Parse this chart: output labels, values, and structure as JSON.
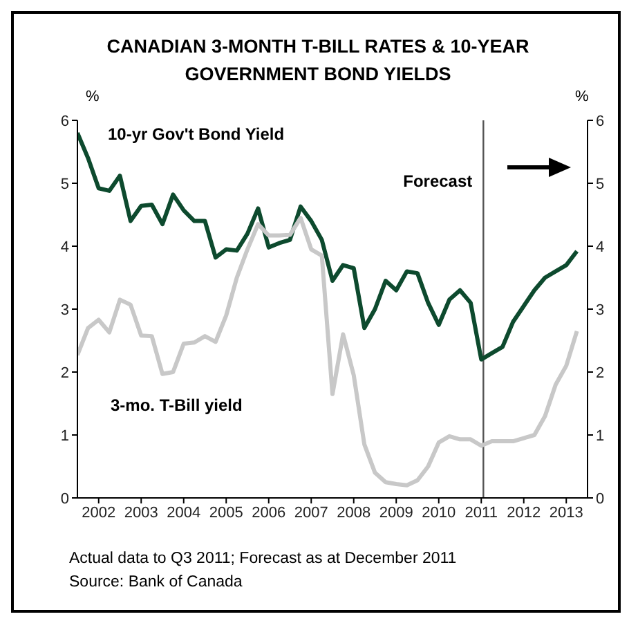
{
  "chart_data": {
    "type": "line",
    "title": "CANADIAN 3-MONTH T-BILL RATES & 10-YEAR GOVERNMENT BOND YIELDS",
    "ylabel": "%",
    "y2label": "%",
    "x": [
      2002,
      2002.25,
      2002.5,
      2002.75,
      2003,
      2003.25,
      2003.5,
      2003.75,
      2004,
      2004.25,
      2004.5,
      2004.75,
      2005,
      2005.25,
      2005.5,
      2005.75,
      2006,
      2006.25,
      2006.5,
      2006.75,
      2007,
      2007.25,
      2007.5,
      2007.75,
      2008,
      2008.25,
      2008.5,
      2008.75,
      2009,
      2009.25,
      2009.5,
      2009.75,
      2010,
      2010.25,
      2010.5,
      2010.75,
      2011,
      2011.25,
      2011.5,
      2011.75,
      2012,
      2012.25,
      2012.5,
      2012.75,
      2013,
      2013.25,
      2013.5,
      2013.75
    ],
    "series": [
      {
        "name": "10-yr Gov't Bond Yield",
        "color": "#0d4a2e",
        "values": [
          5.8,
          5.4,
          4.92,
          4.88,
          5.12,
          4.4,
          4.64,
          4.66,
          4.35,
          4.82,
          4.57,
          4.4,
          4.4,
          3.82,
          3.95,
          3.93,
          4.2,
          4.6,
          3.98,
          4.05,
          4.1,
          4.63,
          4.4,
          4.1,
          3.45,
          3.7,
          3.65,
          2.7,
          3.0,
          3.45,
          3.3,
          3.6,
          3.57,
          3.1,
          2.75,
          3.15,
          3.3,
          3.1,
          2.2,
          2.3,
          2.4,
          2.8,
          3.05,
          3.3,
          3.5,
          3.6,
          3.7,
          3.92
        ]
      },
      {
        "name": "3-mo. T-Bill yield",
        "color": "#c8c8c8",
        "values": [
          2.27,
          2.7,
          2.83,
          2.63,
          3.15,
          3.07,
          2.58,
          2.57,
          1.97,
          2.0,
          2.45,
          2.47,
          2.57,
          2.48,
          2.9,
          3.5,
          3.95,
          4.35,
          4.17,
          4.17,
          4.18,
          4.45,
          3.95,
          3.85,
          1.65,
          2.6,
          1.95,
          0.85,
          0.4,
          0.25,
          0.22,
          0.2,
          0.28,
          0.5,
          0.88,
          0.98,
          0.93,
          0.93,
          0.83,
          0.9,
          0.9,
          0.9,
          0.95,
          1.0,
          1.3,
          1.8,
          2.1,
          2.65
        ]
      }
    ],
    "xlim": [
      2002,
      2014
    ],
    "xticks": [
      {
        "value": 2002.5,
        "label": "2002"
      },
      {
        "value": 2003.5,
        "label": "2003"
      },
      {
        "value": 2004.5,
        "label": "2004"
      },
      {
        "value": 2005.5,
        "label": "2005"
      },
      {
        "value": 2006.5,
        "label": "2006"
      },
      {
        "value": 2007.5,
        "label": "2007"
      },
      {
        "value": 2008.5,
        "label": "2008"
      },
      {
        "value": 2009.5,
        "label": "2009"
      },
      {
        "value": 2010.5,
        "label": "2010"
      },
      {
        "value": 2011.5,
        "label": "2011"
      },
      {
        "value": 2012.5,
        "label": "2012"
      },
      {
        "value": 2013.5,
        "label": "2013"
      }
    ],
    "ylim": [
      0,
      6
    ],
    "yticks": [
      0,
      1,
      2,
      3,
      4,
      5,
      6
    ],
    "y2lim": [
      0,
      6
    ],
    "y2ticks": [
      0,
      1,
      2,
      3,
      4,
      5,
      6
    ],
    "ref_lines": [
      {
        "axis": "x",
        "value": 2011.55,
        "label": "Forecast",
        "color": "#555555"
      }
    ],
    "grid": false,
    "marker": "none",
    "line_style": "solid",
    "annotations": [
      "Actual data to Q3 2011; Forecast as at December 2011",
      "Source: Bank of Canada"
    ]
  }
}
